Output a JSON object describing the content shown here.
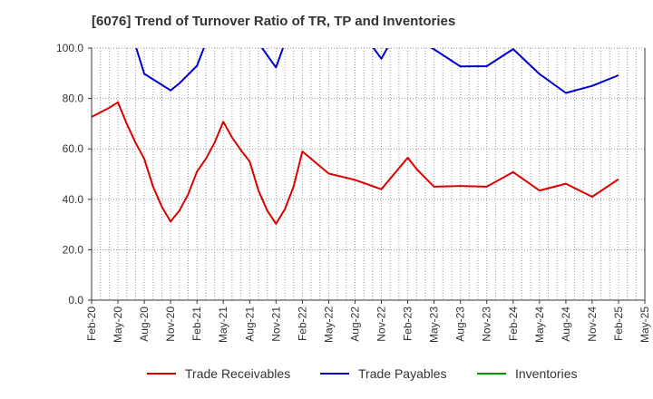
{
  "chart_data": {
    "type": "line",
    "title": "[6076]  Trend of Turnover Ratio of TR, TP and Inventories",
    "xlabel": "",
    "ylabel": "",
    "ylim": [
      0,
      100
    ],
    "yticks": [
      "0.0",
      "20.0",
      "40.0",
      "60.0",
      "80.0",
      "100.0"
    ],
    "xtick_labels": [
      "Feb-20",
      "May-20",
      "Aug-20",
      "Nov-20",
      "Feb-21",
      "May-21",
      "Aug-21",
      "Nov-21",
      "Feb-22",
      "May-22",
      "Aug-22",
      "Nov-22",
      "Feb-23",
      "May-23",
      "Aug-23",
      "Nov-23",
      "Feb-24",
      "May-24",
      "Aug-24",
      "Nov-24",
      "Feb-25",
      "May-25"
    ],
    "grid": true,
    "legend_position": "bottom",
    "series": [
      {
        "name": "Trade Receivables",
        "color": "#dd0000",
        "points": [
          [
            "2020-02",
            72.7
          ],
          [
            "2020-03",
            74.5
          ],
          [
            "2020-04",
            76.3
          ],
          [
            "2020-05",
            78.5
          ],
          [
            "2020-06",
            70.0
          ],
          [
            "2020-07",
            62.5
          ],
          [
            "2020-08",
            56.0
          ],
          [
            "2020-09",
            45.0
          ],
          [
            "2020-10",
            37.0
          ],
          [
            "2020-11",
            31.2
          ],
          [
            "2020-12",
            35.5
          ],
          [
            "2021-01",
            42.0
          ],
          [
            "2021-02",
            51.0
          ],
          [
            "2021-03",
            56.0
          ],
          [
            "2021-04",
            62.5
          ],
          [
            "2021-05",
            70.8
          ],
          [
            "2021-06",
            64.5
          ],
          [
            "2021-07",
            59.5
          ],
          [
            "2021-08",
            55.0
          ],
          [
            "2021-09",
            43.5
          ],
          [
            "2021-10",
            35.5
          ],
          [
            "2021-11",
            30.3
          ],
          [
            "2021-12",
            36.0
          ],
          [
            "2022-01",
            45.0
          ],
          [
            "2022-02",
            59.0
          ],
          [
            "2022-05",
            50.2
          ],
          [
            "2022-08",
            47.7
          ],
          [
            "2022-11",
            44.0
          ],
          [
            "2023-02",
            56.5
          ],
          [
            "2023-03",
            52.0
          ],
          [
            "2023-05",
            45.0
          ],
          [
            "2023-08",
            45.3
          ],
          [
            "2023-11",
            45.0
          ],
          [
            "2024-02",
            50.8
          ],
          [
            "2024-05",
            43.5
          ],
          [
            "2024-08",
            46.2
          ],
          [
            "2024-11",
            41.0
          ],
          [
            "2025-02",
            48.0
          ]
        ]
      },
      {
        "name": "Trade Payables",
        "color": "#0000cc",
        "points": [
          [
            "2020-07",
            101.0
          ],
          [
            "2020-08",
            89.8
          ],
          [
            "2020-11",
            83.2
          ],
          [
            "2020-12",
            86.0
          ],
          [
            "2021-02",
            93.0
          ],
          [
            "2021-03",
            102.0
          ],
          null,
          [
            "2021-09",
            102.0
          ],
          [
            "2021-11",
            92.3
          ],
          [
            "2021-12",
            102.0
          ],
          null,
          [
            "2022-10",
            100.5
          ],
          [
            "2022-11",
            95.8
          ],
          [
            "2022-12",
            102.0
          ],
          null,
          [
            "2023-04",
            101.5
          ],
          [
            "2023-05",
            99.5
          ],
          [
            "2023-08",
            92.7
          ],
          [
            "2023-11",
            92.8
          ],
          [
            "2024-02",
            99.6
          ],
          [
            "2024-05",
            89.7
          ],
          [
            "2024-08",
            82.2
          ],
          [
            "2024-11",
            85.0
          ],
          [
            "2025-02",
            89.2
          ]
        ]
      },
      {
        "name": "Inventories",
        "color": "#009900",
        "points": []
      }
    ]
  }
}
